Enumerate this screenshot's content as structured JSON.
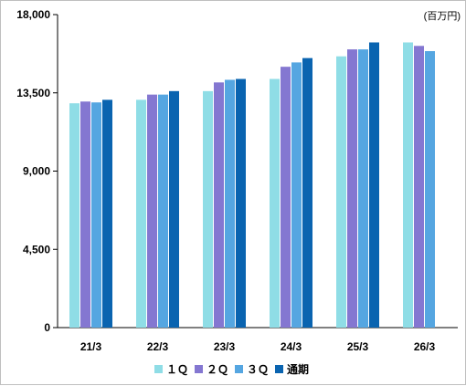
{
  "chart_data": {
    "type": "bar",
    "unit_label": "(百万円)",
    "categories": [
      "21/3",
      "22/3",
      "23/3",
      "24/3",
      "25/3",
      "26/3"
    ],
    "ylim": [
      0,
      18000
    ],
    "yticks": [
      "0",
      "4,500",
      "9,000",
      "13,500",
      "18,000"
    ],
    "ytick_values": [
      0,
      4500,
      9000,
      13500,
      18000
    ],
    "grid": false,
    "legend_position": "bottom",
    "series": [
      {
        "name": "１Ｑ",
        "color": "#8fdde6",
        "values": [
          12900,
          13100,
          13600,
          14300,
          15600,
          16400
        ]
      },
      {
        "name": "２Ｑ",
        "color": "#8477d1",
        "values": [
          13000,
          13400,
          14100,
          15000,
          16000,
          16200
        ]
      },
      {
        "name": "３Ｑ",
        "color": "#55a6e1",
        "values": [
          12950,
          13400,
          14250,
          15250,
          16000,
          15900
        ]
      },
      {
        "name": "通期",
        "color": "#0a64b0",
        "values": [
          13100,
          13600,
          14300,
          15500,
          16400,
          null
        ]
      }
    ]
  }
}
